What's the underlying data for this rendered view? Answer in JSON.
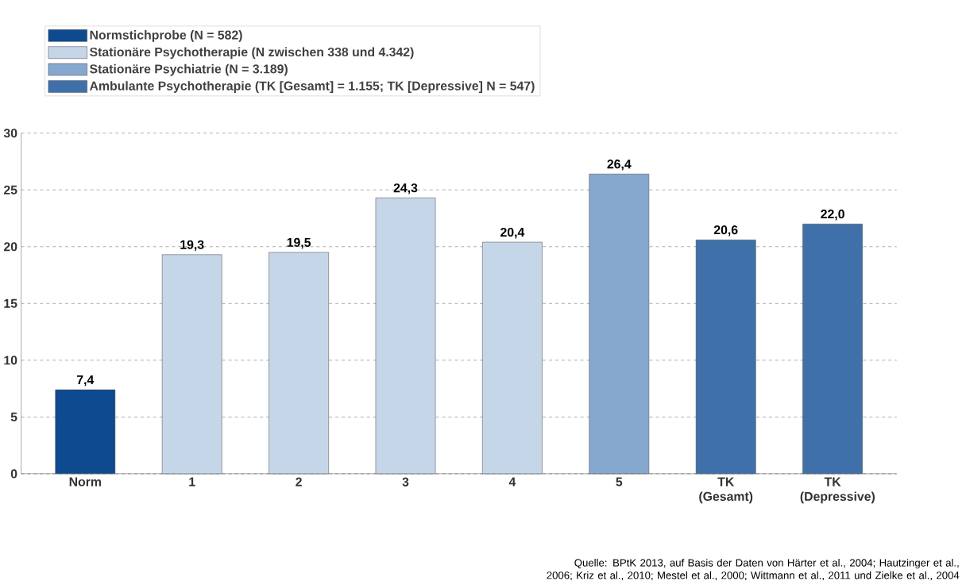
{
  "chart_data": {
    "type": "bar",
    "categories": [
      "Norm",
      "1",
      "2",
      "3",
      "4",
      "5",
      "TK (Gesamt)",
      "TK (Depressive)"
    ],
    "series": [
      {
        "name": "Normstichprobe (N = 582)",
        "color": "#0d4a8f",
        "values": [
          7.4,
          null,
          null,
          null,
          null,
          null,
          null,
          null
        ],
        "value_labels": [
          "7,4",
          null,
          null,
          null,
          null,
          null,
          null,
          null
        ]
      },
      {
        "name": "Stationäre Psychotherapie (N zwischen 338 und 4.342)",
        "color": "#c6d6e9",
        "values": [
          null,
          19.3,
          19.5,
          24.3,
          20.4,
          null,
          null,
          null
        ],
        "value_labels": [
          null,
          "19,3",
          "19,5",
          "24,3",
          "20,4",
          null,
          null,
          null
        ]
      },
      {
        "name": "Stationäre Psychiatrie (N = 3.189)",
        "color": "#86a8cf",
        "values": [
          null,
          null,
          null,
          null,
          null,
          26.4,
          null,
          null
        ],
        "value_labels": [
          null,
          null,
          null,
          null,
          null,
          "26,4",
          null,
          null
        ]
      },
      {
        "name": "Ambulante Psychotherapie (TK [Gesamt] = 1.155; TK [Depressive] N = 547)",
        "color": "#3f70aa",
        "values": [
          null,
          null,
          null,
          null,
          null,
          null,
          20.6,
          22.0
        ],
        "value_labels": [
          null,
          null,
          null,
          null,
          null,
          null,
          "20,6",
          "22,0"
        ]
      }
    ],
    "ylim": [
      0,
      30
    ],
    "yticks": [
      0,
      5,
      10,
      15,
      20,
      25,
      30
    ],
    "grid": "y",
    "legend": "top left",
    "annotations": [
      "Quelle: BPtK 2013, auf Basis der Daten von Härter et al., 2004; Hautzinger et al., 2006; Kriz et al., 2010; Mestel et al., 2000; Wittmann et al., 2011 und Zielke et al., 2004"
    ]
  }
}
